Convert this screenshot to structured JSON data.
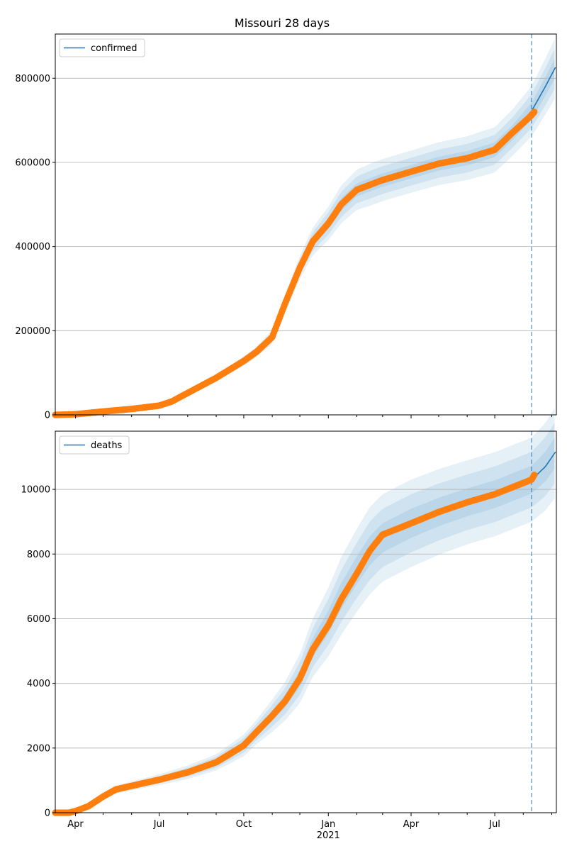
{
  "chart_data": [
    {
      "type": "line",
      "title": "Missouri 28 days",
      "series_name": "confirmed",
      "x_range": [
        "2020-03-10",
        "2021-09-06"
      ],
      "ylim": [
        0,
        905000
      ],
      "yticks": [
        0,
        200000,
        400000,
        600000,
        800000
      ],
      "ytick_labels": [
        "0",
        "200000",
        "400000",
        "600000",
        "800000"
      ],
      "grid": "horizontal",
      "legend_position": "top-left",
      "forecast_start": "2021-08-10",
      "colors": {
        "line": "#1f77b4",
        "points": "#ff7f0e",
        "band": "#1f77b4",
        "vline": "#1f77b4"
      },
      "fit": [
        [
          "2020-03-10",
          0
        ],
        [
          "2020-04-01",
          1500
        ],
        [
          "2020-05-01",
          8000
        ],
        [
          "2020-06-01",
          14000
        ],
        [
          "2020-07-01",
          22000
        ],
        [
          "2020-07-15",
          32000
        ],
        [
          "2020-08-01",
          52000
        ],
        [
          "2020-09-01",
          88000
        ],
        [
          "2020-10-01",
          128000
        ],
        [
          "2020-10-15",
          150000
        ],
        [
          "2020-11-01",
          185000
        ],
        [
          "2020-11-15",
          265000
        ],
        [
          "2020-12-01",
          350000
        ],
        [
          "2020-12-15",
          412000
        ],
        [
          "2021-01-01",
          455000
        ],
        [
          "2021-01-15",
          500000
        ],
        [
          "2021-02-01",
          535000
        ],
        [
          "2021-03-01",
          558000
        ],
        [
          "2021-04-01",
          578000
        ],
        [
          "2021-05-01",
          597000
        ],
        [
          "2021-06-01",
          610000
        ],
        [
          "2021-07-01",
          630000
        ],
        [
          "2021-07-20",
          670000
        ],
        [
          "2021-08-10",
          722000
        ],
        [
          "2021-08-25",
          780000
        ],
        [
          "2021-09-06",
          830000
        ]
      ],
      "observed": [
        [
          "2020-03-10",
          0
        ],
        [
          "2020-04-01",
          1500
        ],
        [
          "2020-05-01",
          8000
        ],
        [
          "2020-06-01",
          14000
        ],
        [
          "2020-07-01",
          22000
        ],
        [
          "2020-07-15",
          32000
        ],
        [
          "2020-08-01",
          52000
        ],
        [
          "2020-09-01",
          88000
        ],
        [
          "2020-10-01",
          128000
        ],
        [
          "2020-10-15",
          150000
        ],
        [
          "2020-11-01",
          185000
        ],
        [
          "2020-11-15",
          265000
        ],
        [
          "2020-12-01",
          350000
        ],
        [
          "2020-12-15",
          412000
        ],
        [
          "2021-01-01",
          455000
        ],
        [
          "2021-01-15",
          500000
        ],
        [
          "2021-02-01",
          535000
        ],
        [
          "2021-03-01",
          558000
        ],
        [
          "2021-04-01",
          578000
        ],
        [
          "2021-05-01",
          597000
        ],
        [
          "2021-06-01",
          610000
        ],
        [
          "2021-07-01",
          630000
        ],
        [
          "2021-07-20",
          670000
        ],
        [
          "2021-08-10",
          712000
        ],
        [
          "2021-08-13",
          720000
        ]
      ],
      "bands": [
        {
          "opacity": 0.11,
          "halfwidth": [
            [
              "2020-03-10",
              0
            ],
            [
              "2020-07-01",
              3000
            ],
            [
              "2020-09-01",
              8000
            ],
            [
              "2020-10-15",
              12000
            ],
            [
              "2020-11-15",
              22000
            ],
            [
              "2020-12-15",
              33000
            ],
            [
              "2021-01-15",
              45000
            ],
            [
              "2021-02-15",
              50000
            ],
            [
              "2021-04-01",
              50000
            ],
            [
              "2021-06-01",
              52000
            ],
            [
              "2021-07-20",
              55000
            ],
            [
              "2021-08-10",
              60000
            ],
            [
              "2021-09-06",
              72000
            ]
          ]
        },
        {
          "opacity": 0.11,
          "halfwidth": [
            [
              "2020-03-10",
              0
            ],
            [
              "2020-07-01",
              2000
            ],
            [
              "2020-09-01",
              5000
            ],
            [
              "2020-10-15",
              8000
            ],
            [
              "2020-11-15",
              14000
            ],
            [
              "2020-12-15",
              22000
            ],
            [
              "2021-01-15",
              30000
            ],
            [
              "2021-02-15",
              33000
            ],
            [
              "2021-04-01",
              33000
            ],
            [
              "2021-06-01",
              34000
            ],
            [
              "2021-07-20",
              36000
            ],
            [
              "2021-08-10",
              40000
            ],
            [
              "2021-09-06",
              48000
            ]
          ]
        },
        {
          "opacity": 0.11,
          "halfwidth": [
            [
              "2020-03-10",
              0
            ],
            [
              "2020-07-01",
              1000
            ],
            [
              "2020-09-01",
              3000
            ],
            [
              "2020-10-15",
              4000
            ],
            [
              "2020-11-15",
              7000
            ],
            [
              "2020-12-15",
              11000
            ],
            [
              "2021-01-15",
              15000
            ],
            [
              "2021-02-15",
              16000
            ],
            [
              "2021-04-01",
              16000
            ],
            [
              "2021-06-01",
              17000
            ],
            [
              "2021-07-20",
              18000
            ],
            [
              "2021-08-10",
              20000
            ],
            [
              "2021-09-06",
              24000
            ]
          ]
        }
      ]
    },
    {
      "type": "line",
      "series_name": "deaths",
      "x_range": [
        "2020-03-10",
        "2021-09-06"
      ],
      "ylim": [
        0,
        11800
      ],
      "yticks": [
        0,
        2000,
        4000,
        6000,
        8000,
        10000
      ],
      "ytick_labels": [
        "0",
        "2000",
        "4000",
        "6000",
        "8000",
        "10000"
      ],
      "xticks": [
        "2020-04-01",
        "2020-07-01",
        "2020-10-01",
        "2021-01-01",
        "2021-04-01",
        "2021-07-01"
      ],
      "xtick_labels": [
        "Apr",
        "Jul",
        "Oct",
        "Jan",
        "Apr",
        "Jul"
      ],
      "year_label": "2021",
      "grid": "horizontal",
      "legend_position": "top-left",
      "forecast_start": "2021-08-10",
      "colors": {
        "line": "#1f77b4",
        "points": "#ff7f0e",
        "band": "#1f77b4",
        "vline": "#1f77b4"
      },
      "fit": [
        [
          "2020-03-10",
          0
        ],
        [
          "2020-03-25",
          0
        ],
        [
          "2020-04-01",
          50
        ],
        [
          "2020-04-15",
          200
        ],
        [
          "2020-05-01",
          500
        ],
        [
          "2020-05-15",
          720
        ],
        [
          "2020-06-01",
          830
        ],
        [
          "2020-06-15",
          920
        ],
        [
          "2020-07-01",
          1020
        ],
        [
          "2020-08-01",
          1250
        ],
        [
          "2020-09-01",
          1560
        ],
        [
          "2020-09-15",
          1800
        ],
        [
          "2020-10-01",
          2080
        ],
        [
          "2020-10-15",
          2500
        ],
        [
          "2020-11-01",
          3000
        ],
        [
          "2020-11-15",
          3450
        ],
        [
          "2020-12-01",
          4150
        ],
        [
          "2020-12-15",
          5100
        ],
        [
          "2021-01-01",
          5900
        ],
        [
          "2021-01-15",
          6700
        ],
        [
          "2021-02-01",
          7500
        ],
        [
          "2021-02-15",
          8100
        ],
        [
          "2021-03-01",
          8500
        ],
        [
          "2021-04-01",
          8950
        ],
        [
          "2021-05-01",
          9300
        ],
        [
          "2021-06-01",
          9600
        ],
        [
          "2021-07-01",
          9850
        ],
        [
          "2021-08-10",
          10300
        ],
        [
          "2021-08-25",
          10700
        ],
        [
          "2021-09-06",
          11200
        ]
      ],
      "observed": [
        [
          "2020-03-10",
          0
        ],
        [
          "2020-03-25",
          0
        ],
        [
          "2020-04-01",
          50
        ],
        [
          "2020-04-15",
          200
        ],
        [
          "2020-05-01",
          500
        ],
        [
          "2020-05-15",
          720
        ],
        [
          "2020-06-01",
          830
        ],
        [
          "2020-06-15",
          920
        ],
        [
          "2020-07-01",
          1020
        ],
        [
          "2020-08-01",
          1250
        ],
        [
          "2020-09-01",
          1560
        ],
        [
          "2020-09-15",
          1800
        ],
        [
          "2020-10-01",
          2080
        ],
        [
          "2020-10-15",
          2500
        ],
        [
          "2020-11-01",
          3000
        ],
        [
          "2020-11-15",
          3450
        ],
        [
          "2020-12-01",
          4150
        ],
        [
          "2020-12-15",
          5050
        ],
        [
          "2021-01-01",
          5800
        ],
        [
          "2021-01-15",
          6600
        ],
        [
          "2021-02-01",
          7400
        ],
        [
          "2021-02-15",
          8100
        ],
        [
          "2021-03-01",
          8600
        ],
        [
          "2021-04-01",
          8950
        ],
        [
          "2021-05-01",
          9300
        ],
        [
          "2021-06-01",
          9600
        ],
        [
          "2021-07-01",
          9850
        ],
        [
          "2021-08-10",
          10300
        ],
        [
          "2021-08-13",
          10450
        ]
      ],
      "bands": [
        {
          "opacity": 0.11,
          "halfwidth": [
            [
              "2020-03-10",
              0
            ],
            [
              "2020-04-01",
              30
            ],
            [
              "2020-05-15",
              120
            ],
            [
              "2020-07-01",
              170
            ],
            [
              "2020-09-01",
              250
            ],
            [
              "2020-10-15",
              380
            ],
            [
              "2020-11-15",
              600
            ],
            [
              "2020-12-15",
              900
            ],
            [
              "2021-01-15",
              1200
            ],
            [
              "2021-02-15",
              1350
            ],
            [
              "2021-04-01",
              1350
            ],
            [
              "2021-06-01",
              1300
            ],
            [
              "2021-08-10",
              1300
            ],
            [
              "2021-09-06",
              1400
            ]
          ]
        },
        {
          "opacity": 0.11,
          "halfwidth": [
            [
              "2020-03-10",
              0
            ],
            [
              "2020-04-01",
              20
            ],
            [
              "2020-05-15",
              80
            ],
            [
              "2020-07-01",
              110
            ],
            [
              "2020-09-01",
              170
            ],
            [
              "2020-10-15",
              250
            ],
            [
              "2020-11-15",
              400
            ],
            [
              "2020-12-15",
              600
            ],
            [
              "2021-01-15",
              800
            ],
            [
              "2021-02-15",
              900
            ],
            [
              "2021-04-01",
              900
            ],
            [
              "2021-06-01",
              860
            ],
            [
              "2021-08-10",
              860
            ],
            [
              "2021-09-06",
              950
            ]
          ]
        },
        {
          "opacity": 0.11,
          "halfwidth": [
            [
              "2020-03-10",
              0
            ],
            [
              "2020-04-01",
              10
            ],
            [
              "2020-05-15",
              40
            ],
            [
              "2020-07-01",
              55
            ],
            [
              "2020-09-01",
              85
            ],
            [
              "2020-10-15",
              125
            ],
            [
              "2020-11-15",
              200
            ],
            [
              "2020-12-15",
              300
            ],
            [
              "2021-01-15",
              400
            ],
            [
              "2021-02-15",
              450
            ],
            [
              "2021-04-01",
              450
            ],
            [
              "2021-06-01",
              430
            ],
            [
              "2021-08-10",
              430
            ],
            [
              "2021-09-06",
              480
            ]
          ]
        }
      ]
    }
  ]
}
